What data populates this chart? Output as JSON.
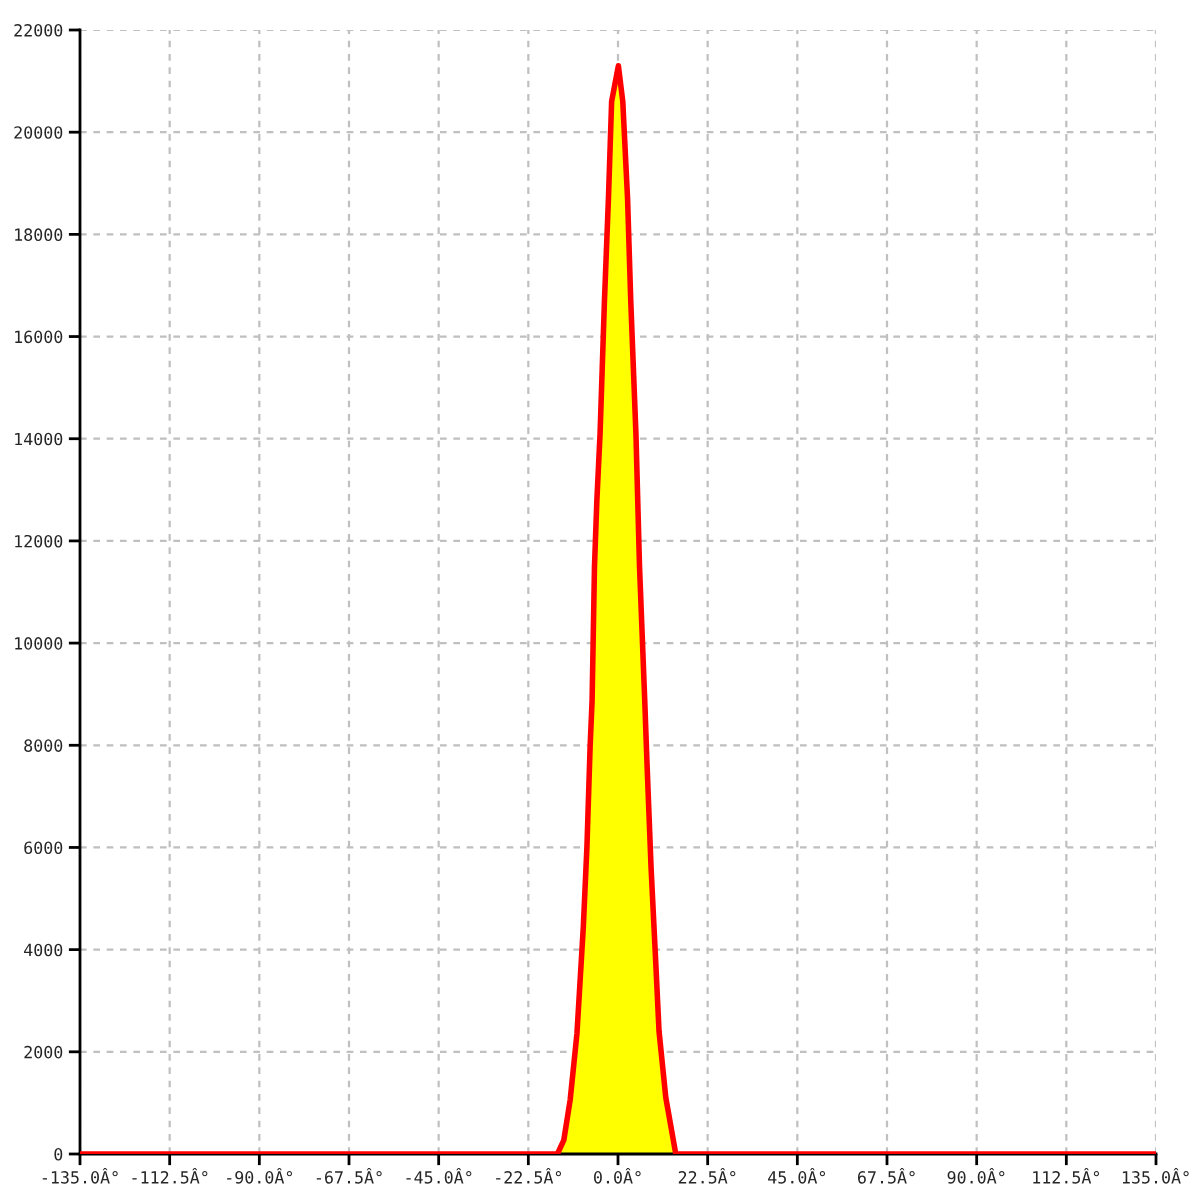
{
  "chart_data": {
    "type": "area",
    "xlim": [
      -135,
      135
    ],
    "xticks": [
      {
        "value": -135,
        "label": "-135.0Â°"
      },
      {
        "value": -112.5,
        "label": "-112.5Â°"
      },
      {
        "value": -90,
        "label": "-90.0Â°"
      },
      {
        "value": -67.5,
        "label": "-67.5Â°"
      },
      {
        "value": -45,
        "label": "-45.0Â°"
      },
      {
        "value": -22.5,
        "label": "-22.5Â°"
      },
      {
        "value": 0,
        "label": "0.0Â°"
      },
      {
        "value": 22.5,
        "label": "22.5Â°"
      },
      {
        "value": 45,
        "label": "45.0Â°"
      },
      {
        "value": 67.5,
        "label": "67.5Â°"
      },
      {
        "value": 90,
        "label": "90.0Â°"
      },
      {
        "value": 112.5,
        "label": "112.5Â°"
      },
      {
        "value": 135,
        "label": "135.0Â°"
      }
    ],
    "ylim": [
      0,
      22000
    ],
    "yticks": [
      0,
      2000,
      4000,
      6000,
      8000,
      10000,
      12000,
      14000,
      16000,
      18000,
      20000,
      22000
    ],
    "grid": true,
    "series": [
      {
        "color": "#ffff00",
        "x": [
          -29.5,
          -15.2,
          -13.6,
          -12.0,
          -10.3,
          -9.5,
          -8.7,
          -7.8,
          -7.0,
          -6.5,
          -5.9,
          -5.3,
          -4.5,
          -3.4,
          -2.4,
          -1.6,
          0.1,
          1.2,
          2.4,
          3.2,
          4.5,
          5.4,
          6.7,
          7.3,
          8.3,
          9.5,
          10.3,
          12.0,
          14.5,
          28.1
        ],
        "values": [
          0,
          0,
          270,
          1060,
          2360,
          3400,
          4450,
          6000,
          7970,
          8880,
          11500,
          12800,
          14100,
          16700,
          18700,
          20600,
          21300,
          20600,
          18700,
          16700,
          14100,
          11500,
          8900,
          7600,
          5600,
          3700,
          2400,
          1100,
          0,
          0
        ]
      },
      {
        "type": "line",
        "color": "#ff0000",
        "x": [
          -135,
          -29.5,
          -15.2,
          -13.6,
          -12.0,
          -10.3,
          -9.5,
          -8.7,
          -7.8,
          -7.0,
          -6.5,
          -5.9,
          -5.3,
          -4.5,
          -3.4,
          -2.4,
          -1.6,
          0.1,
          1.2,
          2.4,
          3.2,
          4.5,
          5.4,
          6.7,
          7.3,
          8.3,
          9.5,
          10.3,
          12.0,
          14.5,
          28.1,
          135
        ],
        "values": [
          0,
          0,
          0,
          270,
          1060,
          2360,
          3400,
          4450,
          6000,
          7970,
          8880,
          11500,
          12800,
          14100,
          16700,
          18700,
          20600,
          21300,
          20600,
          18700,
          16700,
          14100,
          11500,
          8900,
          7600,
          5600,
          3700,
          2400,
          1100,
          0,
          0,
          0
        ]
      }
    ]
  }
}
